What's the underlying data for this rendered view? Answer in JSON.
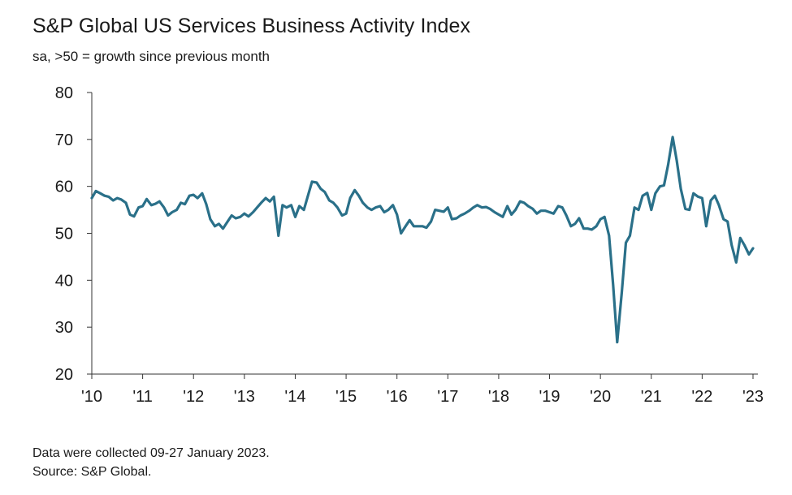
{
  "chart_data": {
    "type": "line",
    "title": "S&P Global US Services Business Activity Index",
    "subtitle": "sa, >50 = growth since previous month",
    "ylim": [
      20,
      80
    ],
    "y_ticks": [
      80,
      70,
      60,
      50,
      40,
      30,
      20
    ],
    "xlim": [
      2010,
      2023
    ],
    "x_ticks": [
      {
        "value": 2010,
        "label": "'10"
      },
      {
        "value": 2011,
        "label": "'11"
      },
      {
        "value": 2012,
        "label": "'12"
      },
      {
        "value": 2013,
        "label": "'13"
      },
      {
        "value": 2014,
        "label": "'14"
      },
      {
        "value": 2015,
        "label": "'15"
      },
      {
        "value": 2016,
        "label": "'16"
      },
      {
        "value": 2017,
        "label": "'17"
      },
      {
        "value": 2018,
        "label": "'18"
      },
      {
        "value": 2019,
        "label": "'19"
      },
      {
        "value": 2020,
        "label": "'20"
      },
      {
        "value": 2021,
        "label": "'21"
      },
      {
        "value": 2022,
        "label": "'22"
      },
      {
        "value": 2023,
        "label": "'23"
      }
    ],
    "grid": false,
    "line_color": "#2a7089",
    "series": [
      {
        "x": [
          2010.0,
          2010.08,
          2010.17,
          2010.25,
          2010.33,
          2010.42,
          2010.5,
          2010.58,
          2010.67,
          2010.75,
          2010.83,
          2010.92,
          2011.0,
          2011.08,
          2011.17,
          2011.25,
          2011.33,
          2011.42,
          2011.5,
          2011.58,
          2011.67,
          2011.75,
          2011.83,
          2011.92,
          2012.0,
          2012.08,
          2012.17,
          2012.25,
          2012.33,
          2012.42,
          2012.5,
          2012.58,
          2012.67,
          2012.75,
          2012.83,
          2012.92,
          2013.0,
          2013.08,
          2013.17,
          2013.25,
          2013.33,
          2013.42,
          2013.5,
          2013.58,
          2013.67,
          2013.75,
          2013.83,
          2013.92,
          2014.0,
          2014.08,
          2014.17,
          2014.25,
          2014.33,
          2014.42,
          2014.5,
          2014.58,
          2014.67,
          2014.75,
          2014.83,
          2014.92,
          2015.0,
          2015.08,
          2015.17,
          2015.25,
          2015.33,
          2015.42,
          2015.5,
          2015.58,
          2015.67,
          2015.75,
          2015.83,
          2015.92,
          2016.0,
          2016.08,
          2016.17,
          2016.25,
          2016.33,
          2016.42,
          2016.5,
          2016.58,
          2016.67,
          2016.75,
          2016.83,
          2016.92,
          2017.0,
          2017.08,
          2017.17,
          2017.25,
          2017.33,
          2017.42,
          2017.5,
          2017.58,
          2017.67,
          2017.75,
          2017.83,
          2017.92,
          2018.0,
          2018.08,
          2018.17,
          2018.25,
          2018.33,
          2018.42,
          2018.5,
          2018.58,
          2018.67,
          2018.75,
          2018.83,
          2018.92,
          2019.0,
          2019.08,
          2019.17,
          2019.25,
          2019.33,
          2019.42,
          2019.5,
          2019.58,
          2019.67,
          2019.75,
          2019.83,
          2019.92,
          2020.0,
          2020.08,
          2020.17,
          2020.25,
          2020.33,
          2020.42,
          2020.5,
          2020.58,
          2020.67,
          2020.75,
          2020.83,
          2020.92,
          2021.0,
          2021.08,
          2021.17,
          2021.25,
          2021.33,
          2021.42,
          2021.5,
          2021.58,
          2021.67,
          2021.75,
          2021.83,
          2021.92,
          2022.0,
          2022.08,
          2022.17,
          2022.25,
          2022.33,
          2022.42,
          2022.5,
          2022.58,
          2022.67,
          2022.75,
          2022.83,
          2022.92,
          2023.0
        ],
        "y": [
          57.5,
          59.0,
          58.5,
          58.0,
          57.8,
          57.0,
          57.5,
          57.2,
          56.5,
          54.0,
          53.6,
          55.5,
          55.8,
          57.3,
          56.0,
          56.3,
          56.8,
          55.5,
          53.8,
          54.5,
          55.0,
          56.5,
          56.2,
          58.0,
          58.2,
          57.5,
          58.5,
          56.2,
          53.0,
          51.5,
          52.0,
          51.0,
          52.5,
          53.8,
          53.2,
          53.5,
          54.2,
          53.6,
          54.5,
          55.5,
          56.5,
          57.5,
          56.8,
          57.8,
          49.5,
          56.0,
          55.5,
          56.0,
          53.5,
          55.8,
          55.0,
          58.0,
          61.0,
          60.8,
          59.5,
          58.8,
          57.0,
          56.5,
          55.5,
          53.8,
          54.2,
          57.5,
          59.2,
          58.0,
          56.5,
          55.5,
          55.0,
          55.5,
          55.8,
          54.5,
          55.0,
          56.0,
          54.0,
          50.0,
          51.5,
          52.8,
          51.5,
          51.5,
          51.5,
          51.2,
          52.5,
          55.0,
          54.8,
          54.6,
          55.5,
          53.0,
          53.2,
          53.8,
          54.2,
          54.8,
          55.5,
          56.0,
          55.5,
          55.6,
          55.2,
          54.5,
          54.0,
          53.5,
          55.8,
          54.0,
          55.0,
          56.8,
          56.5,
          55.8,
          55.2,
          54.2,
          54.8,
          54.8,
          54.5,
          54.2,
          55.8,
          55.5,
          53.8,
          51.5,
          52.0,
          53.2,
          51.0,
          51.0,
          50.8,
          51.5,
          53.0,
          53.5,
          49.5,
          39.0,
          26.8,
          37.5,
          48.0,
          49.5,
          55.5,
          55.0,
          58.0,
          58.6,
          55.0,
          58.5,
          60.0,
          60.2,
          64.5,
          70.5,
          65.5,
          59.5,
          55.2,
          55.0,
          58.5,
          57.8,
          57.5,
          51.5,
          57.0,
          58.0,
          56.0,
          53.0,
          52.5,
          47.5,
          43.8,
          49.0,
          47.5,
          45.5,
          46.8
        ]
      }
    ]
  },
  "footnote": {
    "line1": "Data were collected 09-27 January 2023.",
    "line2": "Source: S&P Global."
  }
}
